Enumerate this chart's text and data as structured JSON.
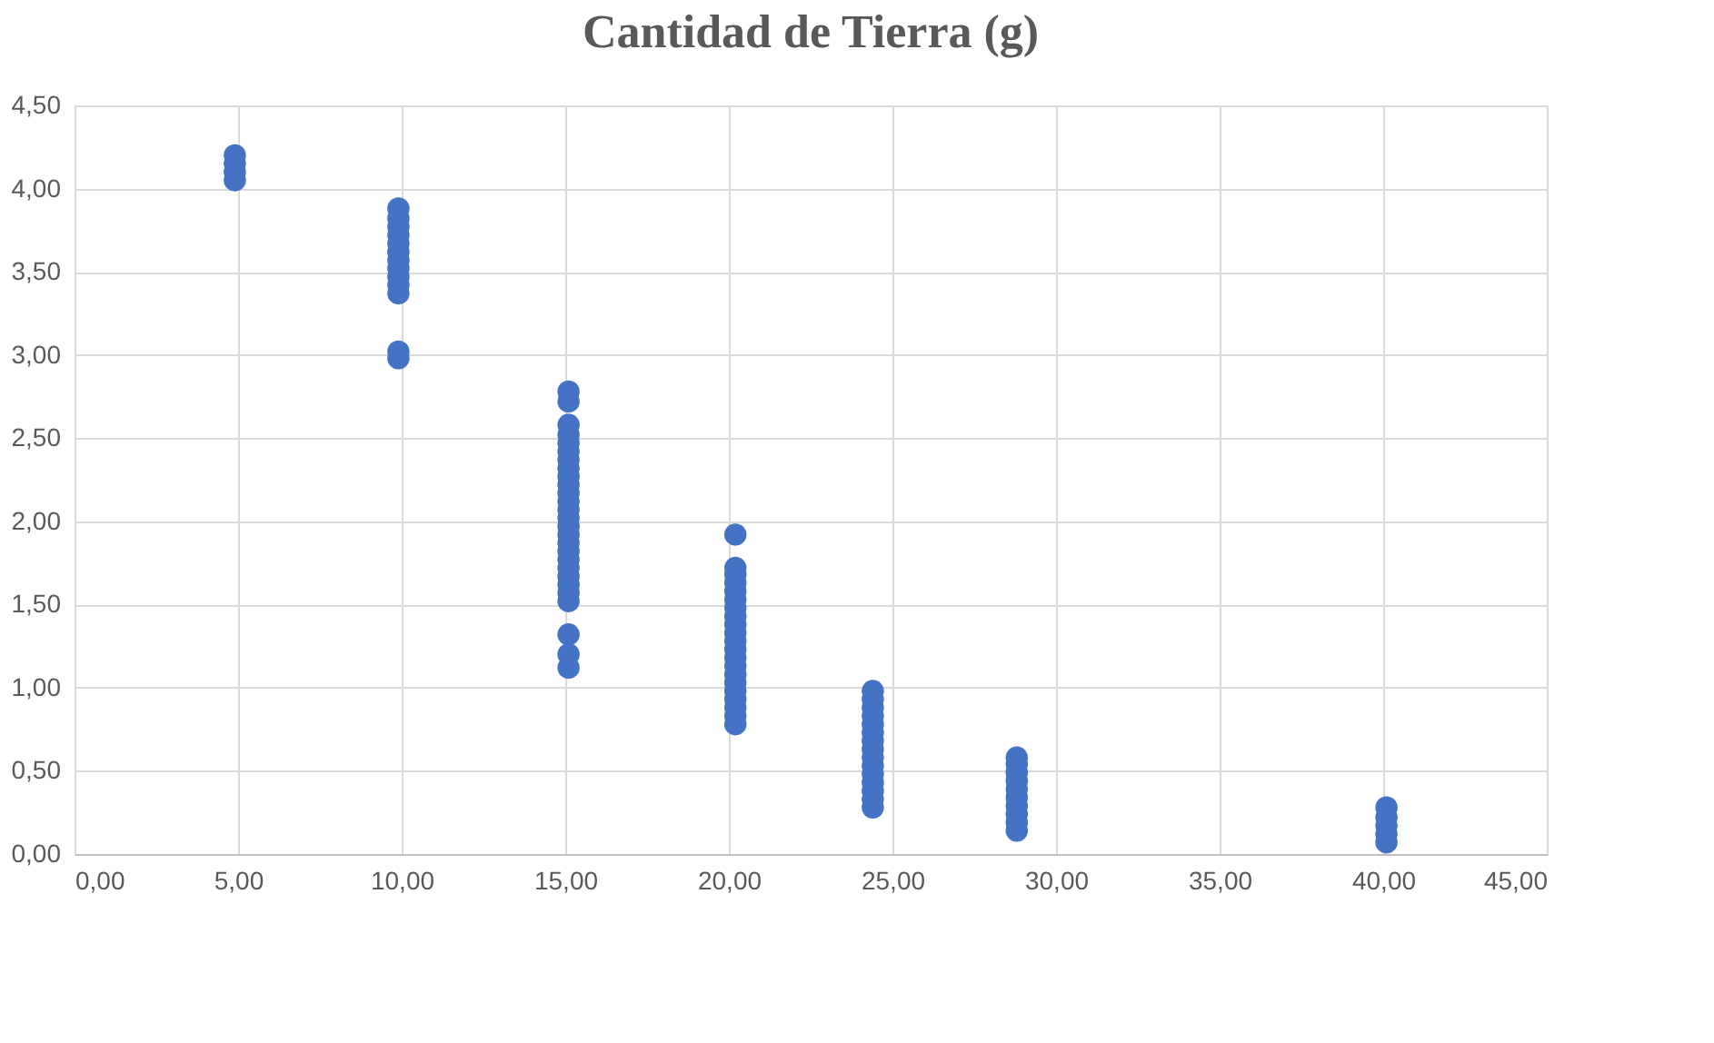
{
  "chart_data": {
    "type": "scatter",
    "title": "Cantidad de Tierra  (g)",
    "x": [
      4.9,
      4.9,
      4.9,
      4.9,
      9.9,
      9.9,
      9.9,
      9.9,
      9.9,
      9.9,
      9.9,
      9.9,
      9.9,
      9.9,
      9.9,
      9.9,
      9.9,
      15.1,
      15.1,
      15.1,
      15.1,
      15.1,
      15.1,
      15.1,
      15.1,
      15.1,
      15.1,
      15.1,
      15.1,
      15.1,
      15.1,
      15.1,
      15.1,
      15.1,
      15.1,
      15.1,
      15.1,
      15.1,
      15.1,
      15.1,
      15.1,
      15.1,
      15.1,
      15.1,
      20.2,
      20.2,
      20.2,
      20.2,
      20.2,
      20.2,
      20.2,
      20.2,
      20.2,
      20.2,
      20.2,
      20.2,
      20.2,
      20.2,
      20.2,
      20.2,
      20.2,
      20.2,
      20.2,
      20.2,
      20.2,
      24.4,
      24.4,
      24.4,
      24.4,
      24.4,
      24.4,
      24.4,
      24.4,
      24.4,
      24.4,
      24.4,
      24.4,
      24.4,
      24.4,
      24.4,
      28.8,
      28.8,
      28.8,
      28.8,
      28.8,
      28.8,
      28.8,
      28.8,
      28.8,
      28.8,
      40.1,
      40.1,
      40.1,
      40.1,
      40.1
    ],
    "values": [
      4.05,
      4.1,
      4.15,
      4.2,
      2.98,
      3.02,
      3.37,
      3.42,
      3.47,
      3.52,
      3.57,
      3.62,
      3.67,
      3.72,
      3.77,
      3.82,
      3.88,
      1.12,
      1.2,
      1.32,
      1.52,
      1.57,
      1.62,
      1.67,
      1.72,
      1.77,
      1.82,
      1.87,
      1.92,
      1.97,
      2.02,
      2.07,
      2.12,
      2.17,
      2.22,
      2.27,
      2.32,
      2.37,
      2.42,
      2.47,
      2.52,
      2.58,
      2.72,
      2.78,
      0.78,
      0.83,
      0.88,
      0.93,
      0.98,
      1.03,
      1.08,
      1.13,
      1.18,
      1.23,
      1.28,
      1.33,
      1.38,
      1.43,
      1.48,
      1.53,
      1.58,
      1.63,
      1.68,
      1.72,
      1.92,
      0.28,
      0.33,
      0.38,
      0.43,
      0.48,
      0.53,
      0.58,
      0.63,
      0.68,
      0.73,
      0.78,
      0.83,
      0.88,
      0.93,
      0.98,
      0.14,
      0.19,
      0.24,
      0.29,
      0.34,
      0.39,
      0.44,
      0.49,
      0.54,
      0.58,
      0.07,
      0.12,
      0.17,
      0.22,
      0.28
    ],
    "color": "#4472c4",
    "marker": "circle",
    "grid": true,
    "xlim": [
      0,
      45
    ],
    "xticks": [
      {
        "value": 0,
        "label": "0,00"
      },
      {
        "value": 5,
        "label": "5,00"
      },
      {
        "value": 10,
        "label": "10,00"
      },
      {
        "value": 15,
        "label": "15,00"
      },
      {
        "value": 20,
        "label": "20,00"
      },
      {
        "value": 25,
        "label": "25,00"
      },
      {
        "value": 30,
        "label": "30,00"
      },
      {
        "value": 35,
        "label": "35,00"
      },
      {
        "value": 40,
        "label": "40,00"
      },
      {
        "value": 45,
        "label": "45,00"
      }
    ],
    "ylim": [
      0,
      4.5
    ],
    "yticks": [
      {
        "value": 0,
        "label": "0,00"
      },
      {
        "value": 0.5,
        "label": "0,50"
      },
      {
        "value": 1,
        "label": "1,00"
      },
      {
        "value": 1.5,
        "label": "1,50"
      },
      {
        "value": 2,
        "label": "2,00"
      },
      {
        "value": 2.5,
        "label": "2,50"
      },
      {
        "value": 3,
        "label": "3,00"
      },
      {
        "value": 3.5,
        "label": "3,50"
      },
      {
        "value": 4,
        "label": "4,00"
      },
      {
        "value": 4.5,
        "label": "4,50"
      }
    ]
  }
}
